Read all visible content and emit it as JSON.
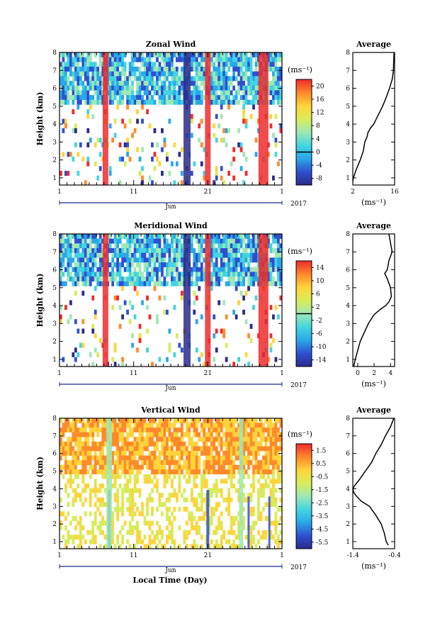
{
  "page": {
    "year_label": "2017",
    "xlabel": "Local Time (Day)"
  },
  "chart_data": [
    {
      "type": "heatmap",
      "title": "Zonal Wind",
      "xlabel": "Jun",
      "ylabel": "Height (km)",
      "x_ticks": [
        "1",
        "11",
        "21",
        "1"
      ],
      "xlim": [
        1,
        31
      ],
      "y_ticks": [
        "1",
        "2",
        "3",
        "4",
        "5",
        "6",
        "7",
        "8"
      ],
      "ylim": [
        0.6,
        8
      ],
      "colorbar": {
        "unit": "(ms⁻¹)",
        "ticks": [
          "20",
          "16",
          "12",
          "8",
          "4",
          "0",
          "-4",
          "-8"
        ],
        "min": -10,
        "max": 22,
        "contour_level": 0
      },
      "avg_profile": {
        "title": "Average",
        "xlabel": "(ms⁻¹)",
        "x_ticks": [
          "2",
          "16"
        ],
        "xlim": [
          2,
          16
        ],
        "height": [
          0.8,
          1.0,
          1.5,
          2.0,
          2.5,
          3.0,
          3.3,
          3.5,
          3.8,
          4.0,
          4.5,
          5.0,
          5.5,
          6.0,
          6.5,
          7.0,
          7.5,
          8.0
        ],
        "value": [
          2.0,
          2.2,
          3.2,
          4.5,
          5.5,
          6.0,
          6.8,
          7.0,
          8.0,
          9.0,
          10.5,
          12.0,
          13.2,
          14.3,
          15.2,
          15.6,
          15.7,
          15.8
        ]
      }
    },
    {
      "type": "heatmap",
      "title": "Meridional Wind",
      "xlabel": "Jun",
      "ylabel": "Height (km)",
      "x_ticks": [
        "1",
        "11",
        "21",
        "1"
      ],
      "xlim": [
        1,
        31
      ],
      "y_ticks": [
        "1",
        "2",
        "3",
        "4",
        "5",
        "6",
        "7",
        "8"
      ],
      "ylim": [
        0.6,
        8
      ],
      "colorbar": {
        "unit": "(ms⁻¹)",
        "ticks": [
          "14",
          "10",
          "6",
          "2",
          "-2",
          "-6",
          "-10",
          "-14"
        ],
        "min": -16,
        "max": 16,
        "contour_level": 0
      },
      "avg_profile": {
        "title": "Average",
        "xlabel": "(ms⁻¹)",
        "x_ticks": [
          "0",
          "2",
          "4"
        ],
        "xlim": [
          -0.6,
          4.5
        ],
        "height": [
          0.6,
          1.0,
          1.5,
          2.0,
          2.5,
          3.0,
          3.5,
          3.8,
          4.0,
          4.2,
          4.5,
          5.0,
          5.5,
          5.8,
          6.0,
          6.5,
          7.0,
          7.5,
          8.0
        ],
        "value": [
          -0.5,
          -0.3,
          0.0,
          0.3,
          0.8,
          1.3,
          2.0,
          2.8,
          3.4,
          3.8,
          4.1,
          4.0,
          3.6,
          3.3,
          3.6,
          3.8,
          4.2,
          4.0,
          3.8
        ]
      }
    },
    {
      "type": "heatmap",
      "title": "Vertical Wind",
      "xlabel": "Jun",
      "ylabel": "Height (km)",
      "x_ticks": [
        "1",
        "11",
        "21",
        "1"
      ],
      "xlim": [
        1,
        31
      ],
      "y_ticks": [
        "1",
        "2",
        "3",
        "4",
        "5",
        "6",
        "7",
        "8"
      ],
      "ylim": [
        0.6,
        8
      ],
      "colorbar": {
        "unit": "(ms⁻¹)",
        "ticks": [
          "1.5",
          "0.5",
          "-0.5",
          "-1.5",
          "-2.5",
          "-3.5",
          "-4.5",
          "-5.5"
        ],
        "min": -6,
        "max": 2,
        "contour_level": null
      },
      "avg_profile": {
        "title": "Average",
        "xlabel": "(ms⁻¹)",
        "x_ticks": [
          "-1.4",
          "-0.4"
        ],
        "xlim": [
          -1.4,
          -0.4
        ],
        "height": [
          0.8,
          1.0,
          1.5,
          2.0,
          2.5,
          3.0,
          3.3,
          3.6,
          3.8,
          4.0,
          4.2,
          4.5,
          5.0,
          5.5,
          6.0,
          6.5,
          7.0,
          7.5,
          8.0
        ],
        "value": [
          -0.55,
          -0.6,
          -0.65,
          -0.72,
          -0.85,
          -1.0,
          -1.2,
          -1.32,
          -1.38,
          -1.4,
          -1.35,
          -1.25,
          -1.1,
          -0.95,
          -0.85,
          -0.72,
          -0.62,
          -0.5,
          -0.42
        ]
      }
    }
  ]
}
